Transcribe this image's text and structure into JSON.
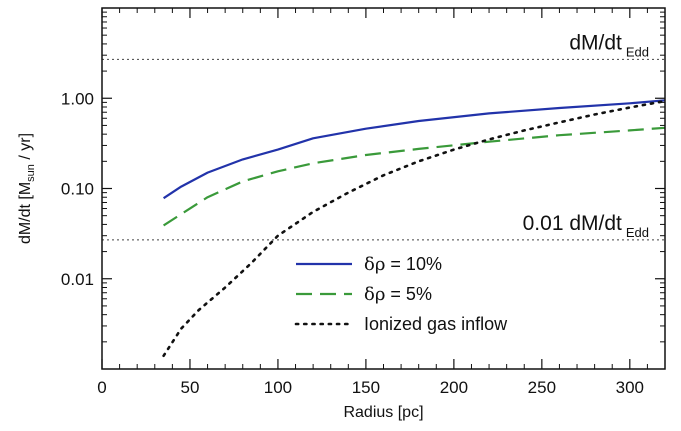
{
  "chart_data": {
    "type": "line",
    "title": "",
    "xlabel": "Radius [pc]",
    "ylabel": {
      "prefix": "dM/dt [M",
      "subscript": "sun",
      "suffix": " / yr]"
    },
    "xlim": [
      0,
      320
    ],
    "ylim": [
      0.001,
      10
    ],
    "yscale": "log",
    "grid": false,
    "legend_placement": "bottom-center",
    "x_ticks": [
      0,
      50,
      100,
      150,
      200,
      250,
      300
    ],
    "x_tick_labels": [
      "0",
      "50",
      "100",
      "150",
      "200",
      "250",
      "300"
    ],
    "y_ticks": [
      0.01,
      0.1,
      1.0
    ],
    "y_tick_labels": [
      "0.01",
      "0.10",
      "1.00"
    ],
    "series": [
      {
        "name_symbol": "δρ",
        "name_text": " = 10%",
        "color": "#2233aa",
        "style": "solid",
        "x": [
          35,
          45,
          60,
          80,
          100,
          120,
          150,
          180,
          220,
          260,
          300,
          320
        ],
        "y": [
          0.078,
          0.105,
          0.15,
          0.21,
          0.27,
          0.36,
          0.46,
          0.56,
          0.68,
          0.78,
          0.88,
          0.95
        ]
      },
      {
        "name_symbol": "δρ",
        "name_text": " = 5%",
        "color": "#3a9a3a",
        "style": "dashed",
        "x": [
          35,
          45,
          60,
          80,
          100,
          120,
          150,
          180,
          220,
          260,
          300,
          320
        ],
        "y": [
          0.039,
          0.052,
          0.08,
          0.12,
          0.155,
          0.19,
          0.235,
          0.275,
          0.33,
          0.39,
          0.44,
          0.47
        ]
      },
      {
        "name": "Ionized gas inflow",
        "color": "#111111",
        "style": "dotted",
        "x": [
          35,
          45,
          55,
          70,
          85,
          100,
          120,
          140,
          160,
          180,
          200,
          220,
          240,
          260,
          280,
          300,
          320
        ],
        "y": [
          0.0014,
          0.0028,
          0.0045,
          0.008,
          0.015,
          0.03,
          0.055,
          0.09,
          0.14,
          0.2,
          0.27,
          0.35,
          0.44,
          0.54,
          0.66,
          0.79,
          0.93
        ]
      }
    ],
    "reference_lines": [
      {
        "y": 2.7,
        "label_main": "dM/dt",
        "label_sub": "Edd"
      },
      {
        "y": 0.027,
        "label_main": "0.01 dM/dt",
        "label_sub": "Edd"
      }
    ]
  }
}
